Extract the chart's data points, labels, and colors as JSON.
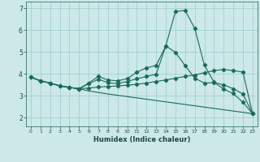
{
  "title": "",
  "xlabel": "Humidex (Indice chaleur)",
  "bg_color": "#cce8e8",
  "grid_color": "#99cccc",
  "line_color": "#1a6b5a",
  "xlim": [
    -0.5,
    23.5
  ],
  "ylim": [
    1.6,
    7.3
  ],
  "yticks": [
    2,
    3,
    4,
    5,
    6,
    7
  ],
  "xticks": [
    0,
    1,
    2,
    3,
    4,
    5,
    6,
    7,
    8,
    9,
    10,
    11,
    12,
    13,
    14,
    15,
    16,
    17,
    18,
    19,
    20,
    21,
    22,
    23
  ],
  "line1_x": [
    0,
    1,
    2,
    3,
    4,
    5,
    6,
    7,
    8,
    9,
    10,
    11,
    12,
    13,
    14,
    15,
    16,
    17,
    18,
    19,
    20,
    21,
    22,
    23
  ],
  "line1_y": [
    3.85,
    3.68,
    3.58,
    3.45,
    3.38,
    3.32,
    3.58,
    3.88,
    3.72,
    3.68,
    3.78,
    4.08,
    4.28,
    4.38,
    5.28,
    6.85,
    6.9,
    6.08,
    4.4,
    3.62,
    3.3,
    3.1,
    2.7,
    2.18
  ],
  "line2_x": [
    0,
    1,
    2,
    3,
    4,
    5,
    6,
    7,
    8,
    9,
    10,
    11,
    12,
    13,
    14,
    15,
    16,
    17,
    18,
    19,
    20,
    21,
    22,
    23
  ],
  "line2_y": [
    3.85,
    3.68,
    3.58,
    3.45,
    3.38,
    3.32,
    3.35,
    3.4,
    3.42,
    3.45,
    3.48,
    3.52,
    3.58,
    3.65,
    3.72,
    3.8,
    3.88,
    3.95,
    4.05,
    4.15,
    4.2,
    4.15,
    4.08,
    2.18
  ],
  "line3_x": [
    0,
    1,
    2,
    3,
    4,
    5,
    6,
    7,
    8,
    9,
    10,
    11,
    12,
    13,
    14,
    15,
    16,
    17,
    18,
    19,
    20,
    21,
    22,
    23
  ],
  "line3_y": [
    3.85,
    3.68,
    3.58,
    3.45,
    3.38,
    3.32,
    3.22,
    3.15,
    3.08,
    3.02,
    2.96,
    2.9,
    2.84,
    2.78,
    2.72,
    2.66,
    2.6,
    2.54,
    2.48,
    2.42,
    2.36,
    2.3,
    2.24,
    2.18
  ],
  "line4_x": [
    0,
    1,
    2,
    3,
    4,
    5,
    6,
    7,
    8,
    9,
    10,
    11,
    12,
    13,
    14,
    15,
    16,
    17,
    18,
    19,
    20,
    21,
    22,
    23
  ],
  "line4_y": [
    3.85,
    3.68,
    3.58,
    3.45,
    3.38,
    3.32,
    3.55,
    3.75,
    3.6,
    3.55,
    3.65,
    3.78,
    3.88,
    3.98,
    5.28,
    4.98,
    4.38,
    3.8,
    3.58,
    3.6,
    3.5,
    3.32,
    3.08,
    2.18
  ]
}
